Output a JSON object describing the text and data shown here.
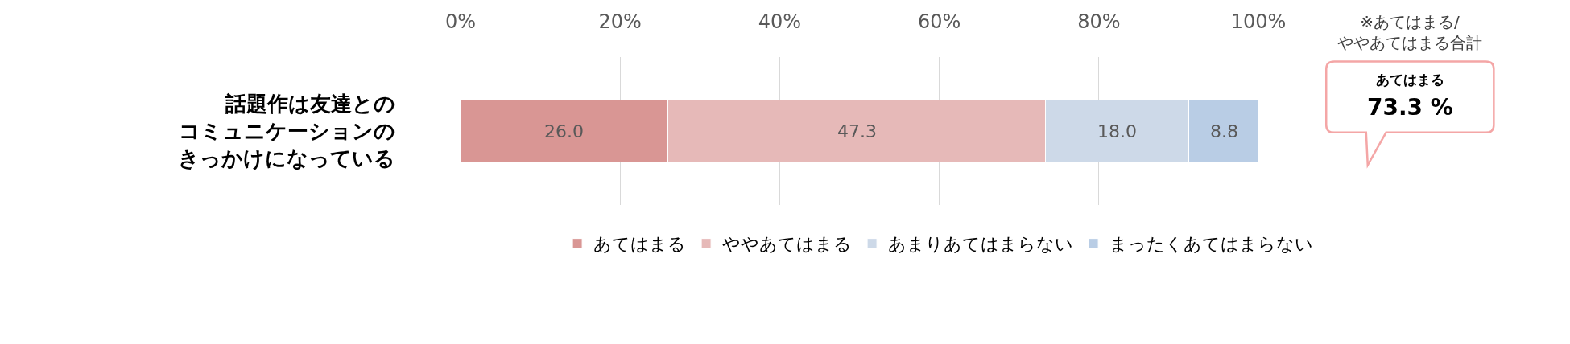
{
  "chart_data": {
    "type": "bar",
    "orientation": "horizontal",
    "stacked": true,
    "categories": [
      "話題作は友達とのコミュニケーションのきっかけになっている"
    ],
    "series": [
      {
        "name": "あてはまる",
        "color": "#d99694",
        "values": [
          26.0
        ],
        "value_labels": [
          "26.0"
        ]
      },
      {
        "name": "ややあてはまる",
        "color": "#e6b9b8",
        "values": [
          47.3
        ],
        "value_labels": [
          "47.3"
        ]
      },
      {
        "name": "あまりあてはまらない",
        "color": "#cdd9e8",
        "values": [
          18.0
        ],
        "value_labels": [
          "18.0"
        ]
      },
      {
        "name": "まったくあてはまらない",
        "color": "#b9cde5",
        "values": [
          8.8
        ],
        "value_labels": [
          "8.8"
        ]
      }
    ],
    "xlim": [
      0,
      100
    ],
    "xticks": [
      {
        "value": 0,
        "label": "0%"
      },
      {
        "value": 20,
        "label": "20%"
      },
      {
        "value": 40,
        "label": "40%"
      },
      {
        "value": 60,
        "label": "60%"
      },
      {
        "value": 80,
        "label": "80%"
      },
      {
        "value": 100,
        "label": "100%"
      }
    ],
    "grid": "x",
    "legend": "bottom",
    "annotations": [
      "※あてはまる/\nややあてはまる合計",
      "あてはまる\n73.3 %"
    ]
  }
}
